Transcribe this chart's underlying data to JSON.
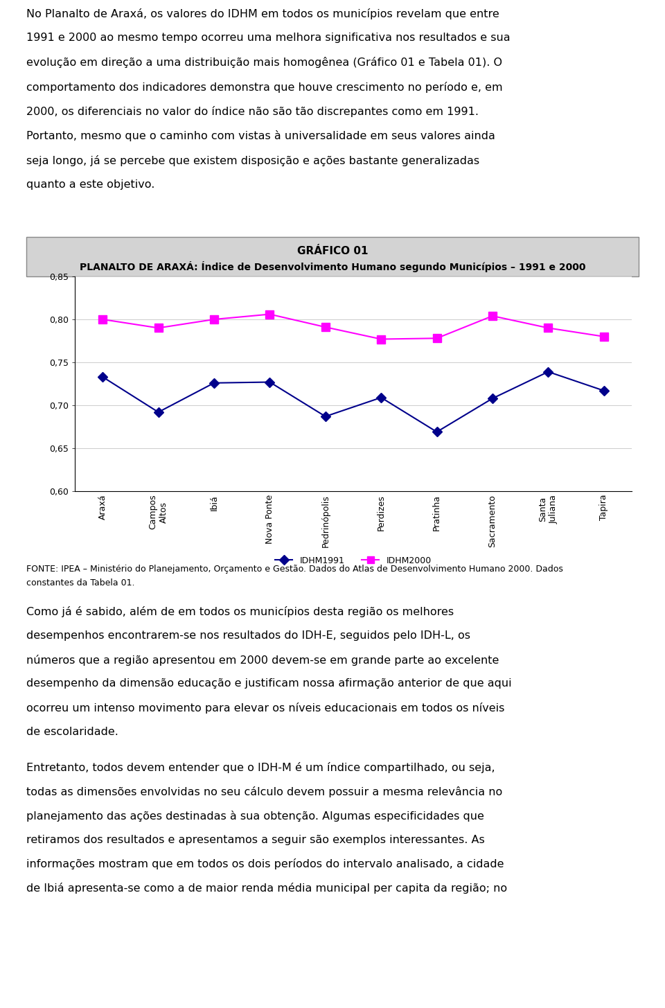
{
  "para1_lines": [
    "No Planalto de Araxá, os valores do IDHM em todos os municípios revelam que entre",
    "1991 e 2000 ao mesmo tempo ocorreu uma melhora significativa nos resultados e sua",
    "evolução em direção a uma distribuição mais homogênea (Gráfico 01 e Tabela 01). O",
    "comportamento dos indicadores demonstra que houve crescimento no período e, em",
    "2000, os diferenciais no valor do índice não são tão discrepantes como em 1991.",
    "Portanto, mesmo que o caminho com vistas à universalidade em seus valores ainda",
    "seja longo, já se percebe que existem disposição e ações bastante generalizadas",
    "quanto a este objetivo."
  ],
  "chart_title_line1": "GRÁFICO 01",
  "chart_title_line2": "PLANALTO DE ARAXÁ: Índice de Desenvolvimento Humano segundo Municípios – 1991 e 2000",
  "categories": [
    "Araxá",
    "Campos\nAltos",
    "Ibiá",
    "Nova Ponte",
    "Pedrinópolis",
    "Perdizes",
    "Pratinha",
    "Sacramento",
    "Santa\nJuliana",
    "Tapira"
  ],
  "idhm1991": [
    0.733,
    0.692,
    0.726,
    0.727,
    0.687,
    0.709,
    0.669,
    0.708,
    0.739,
    0.717
  ],
  "idhm2000": [
    0.8,
    0.79,
    0.8,
    0.806,
    0.791,
    0.777,
    0.778,
    0.804,
    0.79,
    0.78
  ],
  "ylim": [
    0.6,
    0.85
  ],
  "yticks": [
    0.6,
    0.65,
    0.7,
    0.75,
    0.8,
    0.85
  ],
  "color_1991": "#00008B",
  "color_2000": "#FF00FF",
  "legend_1991": "IDHM1991",
  "legend_2000": "IDHM2000",
  "fonte_lines": [
    "FONTE: IPEA – Ministério do Planejamento, Orçamento e Gestão. Dados do Atlas de Desenvolvimento Humano 2000. Dados",
    "constantes da Tabela 01."
  ],
  "para2_lines": [
    "Como já é sabido, além de em todos os municípios desta região os melhores",
    "desempenhos encontrarem-se nos resultados do IDH-E, seguidos pelo IDH-L, os",
    "números que a região apresentou em 2000 devem-se em grande parte ao excelente",
    "desempenho da dimensão educação e justificam nossa afirmação anterior de que aqui",
    "ocorreu um intenso movimento para elevar os níveis educacionais em todos os níveis",
    "de escolaridade."
  ],
  "para3_lines": [
    "Entretanto, todos devem entender que o IDH-M é um índice compartilhado, ou seja,",
    "todas as dimensões envolvidas no seu cálculo devem possuir a mesma relevância no",
    "planejamento das ações destinadas à sua obtenção. Algumas especificidades que",
    "retiramos dos resultados e apresentamos a seguir são exemplos interessantes. As",
    "informações mostram que em todos os dois períodos do intervalo analisado, a cidade",
    "de Ibiá apresenta-se como a de maior renda média municipal per capita da região; no"
  ],
  "title_bg": "#D3D3D3",
  "page_bg": "#FFFFFF",
  "font_size_body": 11.5,
  "font_size_fonte": 9.0,
  "font_size_chart_title1": 11,
  "font_size_chart_title2": 10
}
